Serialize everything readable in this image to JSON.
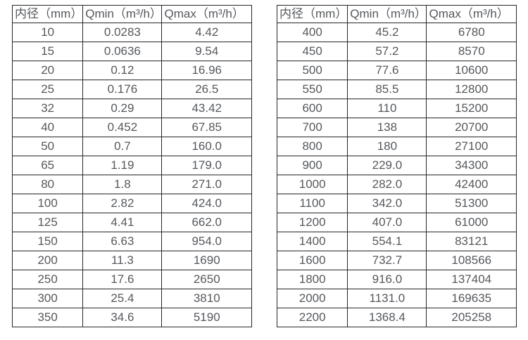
{
  "tables": [
    {
      "name": "flow-range-table-small-diameters",
      "headers": [
        "内径（mm）",
        "Qmin（m³/h）",
        "Qmax（m³/h）"
      ],
      "rows": [
        [
          "10",
          "0.0283",
          "4.42"
        ],
        [
          "15",
          "0.0636",
          "9.54"
        ],
        [
          "20",
          "0.12",
          "16.96"
        ],
        [
          "25",
          "0.176",
          "26.5"
        ],
        [
          "32",
          "0.29",
          "43.42"
        ],
        [
          "40",
          "0.452",
          "67.85"
        ],
        [
          "50",
          "0.7",
          "160.0"
        ],
        [
          "65",
          "1.19",
          "179.0"
        ],
        [
          "80",
          "1.8",
          "271.0"
        ],
        [
          "100",
          "2.82",
          "424.0"
        ],
        [
          "125",
          "4.41",
          "662.0"
        ],
        [
          "150",
          "6.63",
          "954.0"
        ],
        [
          "200",
          "11.3",
          "1690"
        ],
        [
          "250",
          "17.6",
          "2650"
        ],
        [
          "300",
          "25.4",
          "3810"
        ],
        [
          "350",
          "34.6",
          "5190"
        ]
      ]
    },
    {
      "name": "flow-range-table-large-diameters",
      "headers": [
        "内径（mm）",
        "Qmin（m³/h）",
        "Qmax（m³/h）"
      ],
      "rows": [
        [
          "400",
          "45.2",
          "6780"
        ],
        [
          "450",
          "57.2",
          "8570"
        ],
        [
          "500",
          "77.6",
          "10600"
        ],
        [
          "550",
          "85.5",
          "12800"
        ],
        [
          "600",
          "110",
          "15200"
        ],
        [
          "700",
          "138",
          "20700"
        ],
        [
          "800",
          "180",
          "27100"
        ],
        [
          "900",
          "229.0",
          "34300"
        ],
        [
          "1000",
          "282.0",
          "42400"
        ],
        [
          "1100",
          "342.0",
          "51300"
        ],
        [
          "1200",
          "407.0",
          "61000"
        ],
        [
          "1400",
          "554.1",
          "83121"
        ],
        [
          "1600",
          "732.7",
          "108566"
        ],
        [
          "1800",
          "916.0",
          "137404"
        ],
        [
          "2000",
          "1131.0",
          "169635"
        ],
        [
          "2200",
          "1368.4",
          "205258"
        ]
      ]
    }
  ],
  "colors": {
    "background": "#ffffff",
    "border": "#262626",
    "text": "#55585c"
  }
}
